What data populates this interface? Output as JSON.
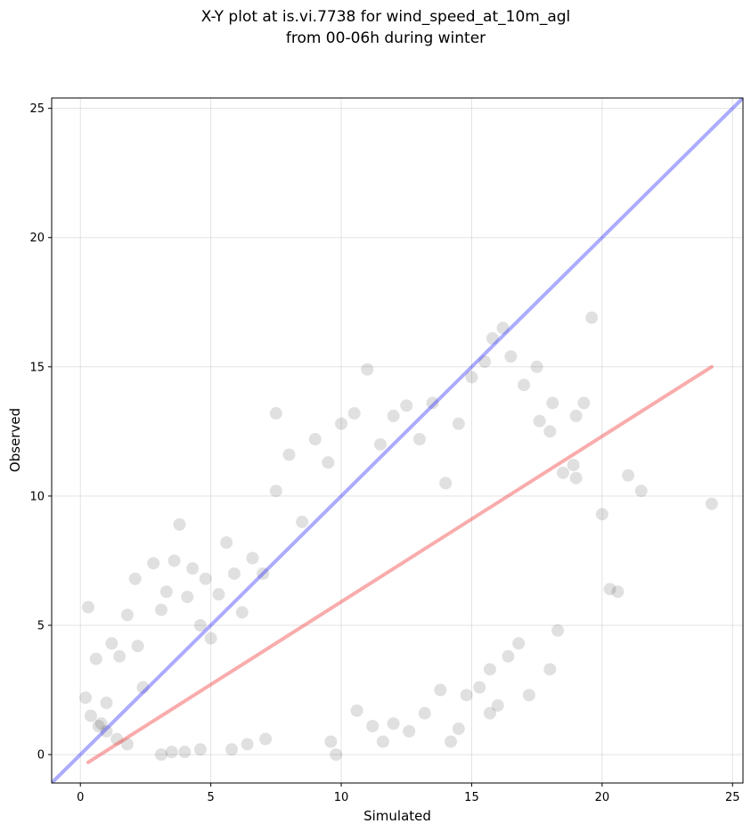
{
  "chart_data": {
    "type": "scatter",
    "title_lines": [
      "X-Y plot at is.vi.7738 for wind_speed_at_10m_agl",
      "from 00-06h during winter"
    ],
    "xlabel": "Simulated",
    "ylabel": "Observed",
    "xlim": [
      -1.1,
      25.4
    ],
    "ylim": [
      -1.1,
      25.4
    ],
    "xticks": [
      0,
      5,
      10,
      15,
      20,
      25
    ],
    "yticks": [
      0,
      5,
      10,
      15,
      20,
      25
    ],
    "grid": true,
    "colors": {
      "points": "#000000",
      "one_to_one_line": "#0000ff",
      "regression_line": "#ee1111"
    },
    "one_to_one_line": {
      "x": [
        -1.1,
        25.4
      ],
      "y": [
        -1.1,
        25.4
      ]
    },
    "regression_line": {
      "x": [
        0.3,
        24.2
      ],
      "y": [
        -0.3,
        15.0
      ]
    },
    "points": {
      "x": [
        0.3,
        0.2,
        0.4,
        0.6,
        0.8,
        1.0,
        1.2,
        1.5,
        1.8,
        2.1,
        2.2,
        2.4,
        2.8,
        3.1,
        3.3,
        3.6,
        3.8,
        4.1,
        4.3,
        4.6,
        4.8,
        5.0,
        5.3,
        5.6,
        5.9,
        6.2,
        6.6,
        7.0,
        7.5,
        7.5,
        8.0,
        8.5,
        9.0,
        9.5,
        10.0,
        10.5,
        11.0,
        11.5,
        12.0,
        12.5,
        13.0,
        13.5,
        14.0,
        14.5,
        15.0,
        15.5,
        15.8,
        16.2,
        16.5,
        17.0,
        17.5,
        18.0,
        18.5,
        19.0,
        19.6,
        20.0,
        20.3,
        20.6,
        21.0,
        21.5,
        24.2,
        18.0,
        17.2,
        16.8,
        16.0,
        15.7,
        15.3,
        14.8,
        14.5,
        14.2,
        13.8,
        13.2,
        12.6,
        12.0,
        11.6,
        11.2,
        10.6,
        9.8,
        9.6,
        18.3,
        16.4,
        15.7,
        19.3,
        19.0,
        18.9,
        18.1,
        17.6,
        3.1,
        3.5,
        4.0,
        4.6,
        5.8,
        6.4,
        7.1,
        1.8,
        1.4,
        1.0,
        0.7
      ],
      "y": [
        5.7,
        2.2,
        1.5,
        3.7,
        1.2,
        2.0,
        4.3,
        3.8,
        5.4,
        6.8,
        4.2,
        2.6,
        7.4,
        5.6,
        6.3,
        7.5,
        8.9,
        6.1,
        7.2,
        5.0,
        6.8,
        4.5,
        6.2,
        8.2,
        7.0,
        5.5,
        7.6,
        7.0,
        13.2,
        10.2,
        11.6,
        9.0,
        12.2,
        11.3,
        12.8,
        13.2,
        14.9,
        12.0,
        13.1,
        13.5,
        12.2,
        13.6,
        10.5,
        12.8,
        14.6,
        15.2,
        16.1,
        16.5,
        15.4,
        14.3,
        15.0,
        12.5,
        10.9,
        10.7,
        16.9,
        9.3,
        6.4,
        6.3,
        10.8,
        10.2,
        9.7,
        3.3,
        2.3,
        4.3,
        1.9,
        1.6,
        2.6,
        2.3,
        1.0,
        0.5,
        2.5,
        1.6,
        0.9,
        1.2,
        0.5,
        1.1,
        1.7,
        0.0,
        0.5,
        4.8,
        3.8,
        3.3,
        13.6,
        13.1,
        11.2,
        13.6,
        12.9,
        0.0,
        0.1,
        0.1,
        0.2,
        0.2,
        0.4,
        0.6,
        0.4,
        0.6,
        0.9,
        1.1
      ]
    }
  }
}
